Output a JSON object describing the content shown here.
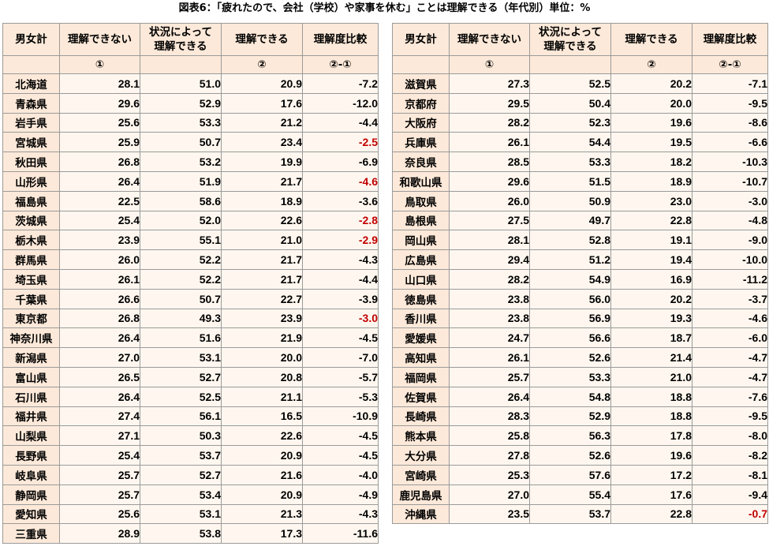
{
  "title": "図表6：「疲れたので、会社（学校）や家事を休む」ことは理解できる（年代別）単位：%",
  "headers": {
    "group": "男女計",
    "not_understand": "理解できない",
    "depends_line1": "状況によって",
    "depends_line2": "理解できる",
    "understand": "理解できる",
    "comparison": "理解度比較"
  },
  "markers": {
    "not_understand": "①",
    "understand": "②",
    "comparison": "②-①"
  },
  "colors": {
    "header_bg": "#fde9d9",
    "cell_bg": "#fff7ef",
    "highlight_red": "#c00000"
  },
  "left_rows": [
    {
      "pref": "北海道",
      "a": "28.1",
      "b": "51.0",
      "c": "20.9",
      "d": "-7.2",
      "red": false
    },
    {
      "pref": "青森県",
      "a": "29.6",
      "b": "52.9",
      "c": "17.6",
      "d": "-12.0",
      "red": false
    },
    {
      "pref": "岩手県",
      "a": "25.6",
      "b": "53.3",
      "c": "21.2",
      "d": "-4.4",
      "red": false
    },
    {
      "pref": "宮城県",
      "a": "25.9",
      "b": "50.7",
      "c": "23.4",
      "d": "-2.5",
      "red": true
    },
    {
      "pref": "秋田県",
      "a": "26.8",
      "b": "53.2",
      "c": "19.9",
      "d": "-6.9",
      "red": false
    },
    {
      "pref": "山形県",
      "a": "26.4",
      "b": "51.9",
      "c": "21.7",
      "d": "-4.6",
      "red": true
    },
    {
      "pref": "福島県",
      "a": "22.5",
      "b": "58.6",
      "c": "18.9",
      "d": "-3.6",
      "red": false
    },
    {
      "pref": "茨城県",
      "a": "25.4",
      "b": "52.0",
      "c": "22.6",
      "d": "-2.8",
      "red": true
    },
    {
      "pref": "栃木県",
      "a": "23.9",
      "b": "55.1",
      "c": "21.0",
      "d": "-2.9",
      "red": true
    },
    {
      "pref": "群馬県",
      "a": "26.0",
      "b": "52.2",
      "c": "21.7",
      "d": "-4.3",
      "red": false
    },
    {
      "pref": "埼玉県",
      "a": "26.1",
      "b": "52.2",
      "c": "21.7",
      "d": "-4.4",
      "red": false
    },
    {
      "pref": "千葉県",
      "a": "26.6",
      "b": "50.7",
      "c": "22.7",
      "d": "-3.9",
      "red": false
    },
    {
      "pref": "東京都",
      "a": "26.8",
      "b": "49.3",
      "c": "23.9",
      "d": "-3.0",
      "red": true
    },
    {
      "pref": "神奈川県",
      "a": "26.4",
      "b": "51.6",
      "c": "21.9",
      "d": "-4.5",
      "red": false
    },
    {
      "pref": "新潟県",
      "a": "27.0",
      "b": "53.1",
      "c": "20.0",
      "d": "-7.0",
      "red": false
    },
    {
      "pref": "富山県",
      "a": "26.5",
      "b": "52.7",
      "c": "20.8",
      "d": "-5.7",
      "red": false
    },
    {
      "pref": "石川県",
      "a": "26.4",
      "b": "52.5",
      "c": "21.1",
      "d": "-5.3",
      "red": false
    },
    {
      "pref": "福井県",
      "a": "27.4",
      "b": "56.1",
      "c": "16.5",
      "d": "-10.9",
      "red": false
    },
    {
      "pref": "山梨県",
      "a": "27.1",
      "b": "50.3",
      "c": "22.6",
      "d": "-4.5",
      "red": false
    },
    {
      "pref": "長野県",
      "a": "25.4",
      "b": "53.7",
      "c": "20.9",
      "d": "-4.5",
      "red": false
    },
    {
      "pref": "岐阜県",
      "a": "25.7",
      "b": "52.7",
      "c": "21.6",
      "d": "-4.0",
      "red": false
    },
    {
      "pref": "静岡県",
      "a": "25.7",
      "b": "53.4",
      "c": "20.9",
      "d": "-4.9",
      "red": false
    },
    {
      "pref": "愛知県",
      "a": "25.6",
      "b": "53.1",
      "c": "21.3",
      "d": "-4.3",
      "red": false
    },
    {
      "pref": "三重県",
      "a": "28.9",
      "b": "53.8",
      "c": "17.3",
      "d": "-11.6",
      "red": false
    }
  ],
  "right_rows": [
    {
      "pref": "滋賀県",
      "a": "27.3",
      "b": "52.5",
      "c": "20.2",
      "d": "-7.1",
      "red": false
    },
    {
      "pref": "京都府",
      "a": "29.5",
      "b": "50.4",
      "c": "20.0",
      "d": "-9.5",
      "red": false
    },
    {
      "pref": "大阪府",
      "a": "28.2",
      "b": "52.3",
      "c": "19.6",
      "d": "-8.6",
      "red": false
    },
    {
      "pref": "兵庫県",
      "a": "26.1",
      "b": "54.4",
      "c": "19.5",
      "d": "-6.6",
      "red": false
    },
    {
      "pref": "奈良県",
      "a": "28.5",
      "b": "53.3",
      "c": "18.2",
      "d": "-10.3",
      "red": false
    },
    {
      "pref": "和歌山県",
      "a": "29.6",
      "b": "51.5",
      "c": "18.9",
      "d": "-10.7",
      "red": false
    },
    {
      "pref": "鳥取県",
      "a": "26.0",
      "b": "50.9",
      "c": "23.0",
      "d": "-3.0",
      "red": false
    },
    {
      "pref": "島根県",
      "a": "27.5",
      "b": "49.7",
      "c": "22.8",
      "d": "-4.8",
      "red": false
    },
    {
      "pref": "岡山県",
      "a": "28.1",
      "b": "52.8",
      "c": "19.1",
      "d": "-9.0",
      "red": false
    },
    {
      "pref": "広島県",
      "a": "29.4",
      "b": "51.2",
      "c": "19.4",
      "d": "-10.0",
      "red": false
    },
    {
      "pref": "山口県",
      "a": "28.2",
      "b": "54.9",
      "c": "16.9",
      "d": "-11.2",
      "red": false
    },
    {
      "pref": "徳島県",
      "a": "23.8",
      "b": "56.0",
      "c": "20.2",
      "d": "-3.7",
      "red": false
    },
    {
      "pref": "香川県",
      "a": "23.8",
      "b": "56.9",
      "c": "19.3",
      "d": "-4.6",
      "red": false
    },
    {
      "pref": "愛媛県",
      "a": "24.7",
      "b": "56.6",
      "c": "18.7",
      "d": "-6.0",
      "red": false
    },
    {
      "pref": "高知県",
      "a": "26.1",
      "b": "52.6",
      "c": "21.4",
      "d": "-4.7",
      "red": false
    },
    {
      "pref": "福岡県",
      "a": "25.7",
      "b": "53.3",
      "c": "21.0",
      "d": "-4.7",
      "red": false
    },
    {
      "pref": "佐賀県",
      "a": "26.4",
      "b": "54.8",
      "c": "18.8",
      "d": "-7.6",
      "red": false
    },
    {
      "pref": "長崎県",
      "a": "28.3",
      "b": "52.9",
      "c": "18.8",
      "d": "-9.5",
      "red": false
    },
    {
      "pref": "熊本県",
      "a": "25.8",
      "b": "56.3",
      "c": "17.8",
      "d": "-8.0",
      "red": false
    },
    {
      "pref": "大分県",
      "a": "27.8",
      "b": "52.6",
      "c": "19.6",
      "d": "-8.2",
      "red": false
    },
    {
      "pref": "宮崎県",
      "a": "25.3",
      "b": "57.6",
      "c": "17.2",
      "d": "-8.1",
      "red": false
    },
    {
      "pref": "鹿児島県",
      "a": "27.0",
      "b": "55.4",
      "c": "17.6",
      "d": "-9.4",
      "red": false
    },
    {
      "pref": "沖縄県",
      "a": "23.5",
      "b": "53.7",
      "c": "22.8",
      "d": "-0.7",
      "red": true
    }
  ]
}
